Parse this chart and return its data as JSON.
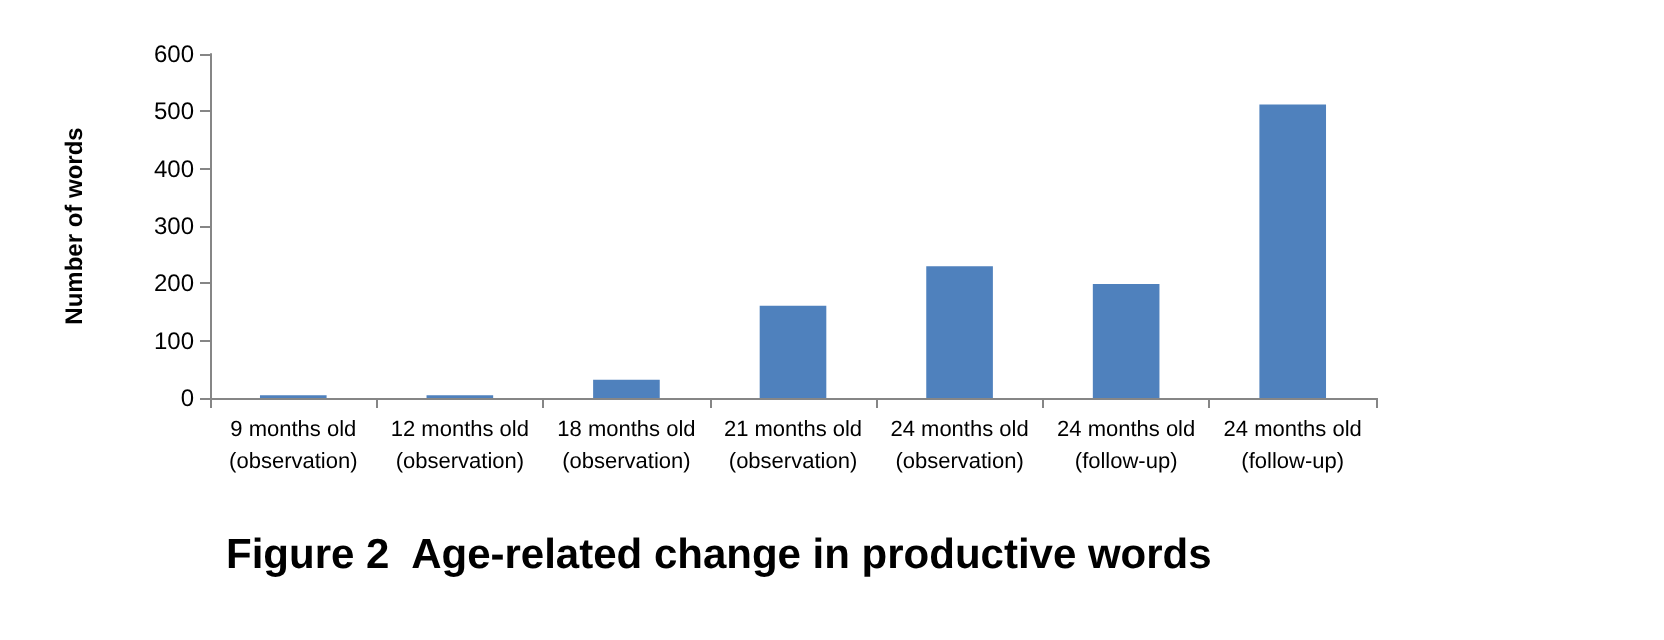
{
  "chart_data": {
    "type": "bar",
    "title": "Figure 2  Age-related change in productive words",
    "ylabel": "Number of words",
    "categories": [
      "9 months old\n(observation)",
      "12 months old\n(observation)",
      "18 months old\n(observation)",
      "21 months old\n(observation)",
      "24 months old\n(observation)",
      "24 months old\n(follow-up)",
      "24 months old\n(follow-up)"
    ],
    "values": [
      5,
      5,
      32,
      161,
      230,
      199,
      512
    ],
    "color": "#4f81bd",
    "ylim": [
      0,
      600
    ],
    "yticks": [
      0,
      100,
      200,
      300,
      400,
      500,
      600
    ],
    "grid": false
  }
}
